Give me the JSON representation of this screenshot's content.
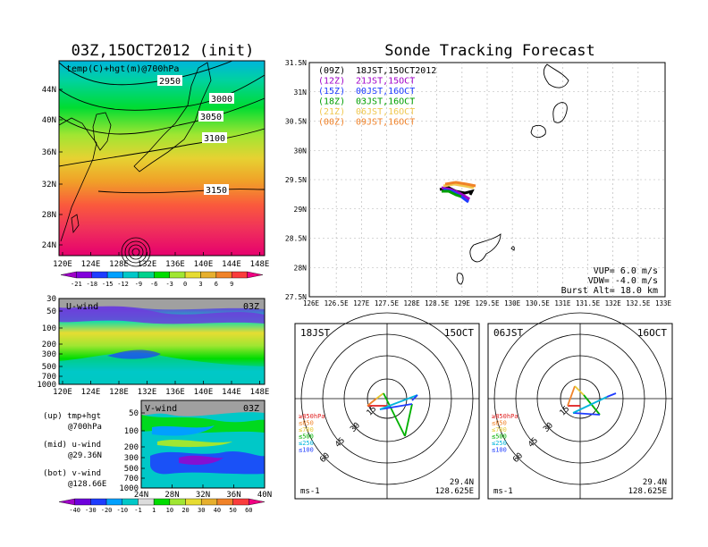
{
  "header": {
    "left_title": "03Z,15OCT2012 (init)",
    "right_title": "Sonde Tracking Forecast"
  },
  "map_panel": {
    "label": "temp(C)+hgt(m)@700hPa",
    "lat_ticks": [
      "44N",
      "40N",
      "36N",
      "32N",
      "28N",
      "24N"
    ],
    "lon_ticks": [
      "120E",
      "124E",
      "128E",
      "132E",
      "136E",
      "140E",
      "144E",
      "148E"
    ],
    "contour_labels": [
      "2950",
      "3000",
      "3050",
      "3100",
      "3150"
    ],
    "colorbar_ticks": [
      "-21",
      "-18",
      "-15",
      "-12",
      "-9",
      "-6",
      "-3",
      "0",
      "3",
      "6",
      "9"
    ],
    "colorbar_colors": [
      "#a000c8",
      "#8200dc",
      "#1e3cff",
      "#00a0ff",
      "#00c8c8",
      "#00d28c",
      "#00dc00",
      "#a0e632",
      "#e6dc32",
      "#e6af2d",
      "#f08228",
      "#fa3c3c",
      "#f00082"
    ]
  },
  "u_panel": {
    "label": "U-wind",
    "time": "03Z",
    "y_ticks": [
      "30",
      "50",
      "100",
      "200",
      "300",
      "500",
      "700",
      "1000"
    ],
    "x_ticks": [
      "120E",
      "124E",
      "128E",
      "132E",
      "136E",
      "140E",
      "144E",
      "148E"
    ]
  },
  "v_panel": {
    "label": "V-wind",
    "time": "03Z",
    "y_ticks": [
      "50",
      "100",
      "200",
      "300",
      "500",
      "700",
      "1000"
    ],
    "x_ticks": [
      "24N",
      "28N",
      "32N",
      "36N",
      "40N"
    ]
  },
  "notes": {
    "up_a": "(up) tmp+hgt",
    "up_b": "@700hPa",
    "mid_a": "(mid) u-wind",
    "mid_b": "@29.36N",
    "bot_a": "(bot) v-wind",
    "bot_b": "@128.66E"
  },
  "wind_colorbar": {
    "ticks": [
      "-40",
      "-30",
      "-20",
      "-10",
      "-1",
      "1",
      "10",
      "20",
      "30",
      "40",
      "50",
      "60"
    ],
    "colors": [
      "#a000c8",
      "#6e00dc",
      "#1e3cff",
      "#00a0ff",
      "#00c8c8",
      "#dcdcdc",
      "#00dc00",
      "#a0e632",
      "#e6dc32",
      "#e6af2d",
      "#f08228",
      "#fa3c3c",
      "#f00082"
    ]
  },
  "track_map": {
    "lat_ticks": [
      "31.5N",
      "31N",
      "30.5N",
      "30N",
      "29.5N",
      "29N",
      "28.5N",
      "28N",
      "27.5N"
    ],
    "lon_ticks": [
      "126E",
      "126.5E",
      "127E",
      "127.5E",
      "128E",
      "128.5E",
      "129E",
      "129.5E",
      "130E",
      "130.5E",
      "131E",
      "131.5E",
      "132E",
      "132.5E",
      "133E"
    ],
    "legend": [
      {
        "utc": "(09Z)",
        "jst": "18JST,15OCT2012",
        "color": "#000000"
      },
      {
        "utc": "(12Z)",
        "jst": "21JST,15OCT",
        "color": "#a000c8"
      },
      {
        "utc": "(15Z)",
        "jst": "00JST,16OCT",
        "color": "#1e3cff"
      },
      {
        "utc": "(18Z)",
        "jst": "03JST,16OCT",
        "color": "#00a000"
      },
      {
        "utc": "(21Z)",
        "jst": "06JST,16OCT",
        "color": "#f0c850"
      },
      {
        "utc": "(00Z)",
        "jst": "09JST,16OCT",
        "color": "#f08228"
      }
    ],
    "vup": "VUP= 6.0 m/s",
    "vdw": "VDW= -4.0 m/s",
    "burst": "Burst Alt= 18.0 km"
  },
  "hodographs": [
    {
      "time": "18JST",
      "date": "15OCT",
      "unit": "ms-1",
      "lat": "29.4N",
      "lon": "128.625E",
      "rings": [
        "15",
        "30",
        "45",
        "60"
      ]
    },
    {
      "time": "06JST",
      "date": "16OCT",
      "unit": "ms-1",
      "lat": "29.4N",
      "lon": "128.625E",
      "rings": [
        "15",
        "30",
        "45",
        "60"
      ]
    }
  ],
  "hodo_legend": [
    {
      "label": "≥850hPa",
      "color": "#e02020"
    },
    {
      "label": "≤850",
      "color": "#f08228"
    },
    {
      "label": "≤700",
      "color": "#e6c832"
    },
    {
      "label": "≤500",
      "color": "#00b000"
    },
    {
      "label": "≤250",
      "color": "#00b4dc"
    },
    {
      "label": "≤100",
      "color": "#1e3cff"
    }
  ]
}
